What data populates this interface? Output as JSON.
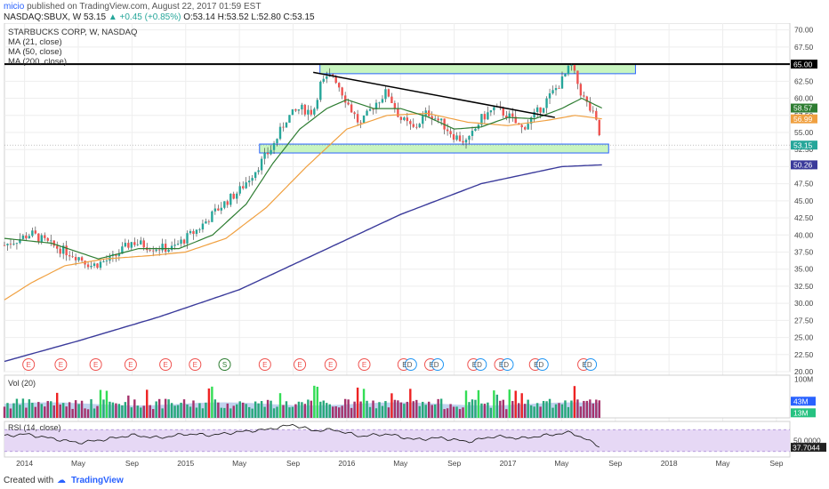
{
  "header": {
    "author": "micio",
    "published": "published on TradingView.com, August 22, 2017 01:59 EST",
    "symbol": "NASDAQ:SBUX, W",
    "last": "53.15",
    "change": "+0.45 (+0.85%)",
    "ohlc": "O:53.14 H:53.52 L:52.80 C:53.15"
  },
  "footer": {
    "created_with": "Created with",
    "brand": "TradingView"
  },
  "colors": {
    "up": "#26a69a",
    "down": "#ef5350",
    "ma21": "#2e7d32",
    "ma50": "#f0a040",
    "ma200": "#3b3b9b",
    "zone_fill": "#c8f5c0",
    "zone_stroke": "#2962ff",
    "rsi_bg": "#e6d8f5",
    "vol_area": "#a7c1e8"
  },
  "chart_data": {
    "type": "line",
    "title": "STARBUCKS CORP, W, NASDAQ",
    "legend": [
      "MA (21, close)",
      "MA (50, close)",
      "MA (200, close)"
    ],
    "ylim": [
      20,
      71
    ],
    "y_ticks": [
      "70.00",
      "67.50",
      "65.00",
      "62.50",
      "60.00",
      "57.50",
      "55.00",
      "52.50",
      "50.00",
      "47.50",
      "45.00",
      "42.50",
      "40.00",
      "37.50",
      "35.00",
      "32.50",
      "30.00",
      "27.50",
      "25.00",
      "22.50",
      "20.00"
    ],
    "x_ticks": [
      "2014",
      "May",
      "Sep",
      "2015",
      "May",
      "Sep",
      "2016",
      "May",
      "Sep",
      "2017",
      "May",
      "Sep",
      "2018",
      "May",
      "Sep"
    ],
    "x_tick_months": [
      24168,
      24172,
      24176,
      24180,
      24184,
      24188,
      24192,
      24196,
      24200,
      24204,
      24208,
      24212,
      24216,
      24220,
      24224
    ],
    "x_range_months": [
      24166.5,
      24225
    ],
    "price_waypoints": [
      [
        24166.5,
        38.5
      ],
      [
        24168.5,
        40.2
      ],
      [
        24170,
        38.5
      ],
      [
        24172,
        36.8
      ],
      [
        24173,
        35.5
      ],
      [
        24174.5,
        36.5
      ],
      [
        24176,
        39.0
      ],
      [
        24177.5,
        38.2
      ],
      [
        24179,
        38.0
      ],
      [
        24180,
        39.5
      ],
      [
        24181,
        41.0
      ],
      [
        24182.5,
        44.0
      ],
      [
        24184,
        46.5
      ],
      [
        24185,
        49.0
      ],
      [
        24186.5,
        53.0
      ],
      [
        24187.5,
        57.0
      ],
      [
        24188.5,
        58.5
      ],
      [
        24189.5,
        58.0
      ],
      [
        24190,
        62.0
      ],
      [
        24191,
        63.5
      ],
      [
        24192,
        59.5
      ],
      [
        24193,
        56.0
      ],
      [
        24194,
        59.0
      ],
      [
        24195,
        61.0
      ],
      [
        24196,
        57.0
      ],
      [
        24197,
        55.5
      ],
      [
        24198,
        58.0
      ],
      [
        24199,
        56.5
      ],
      [
        24200,
        54.5
      ],
      [
        24201,
        53.5
      ],
      [
        24202,
        57.0
      ],
      [
        24203,
        58.5
      ],
      [
        24204,
        57.5
      ],
      [
        24205,
        55.5
      ],
      [
        24206,
        57.5
      ],
      [
        24207,
        60.0
      ],
      [
        24208,
        62.5
      ],
      [
        24208.7,
        64.8
      ],
      [
        24209.5,
        60.5
      ],
      [
        24210.5,
        57.0
      ],
      [
        24211,
        53.15
      ]
    ],
    "ma21_waypoints": [
      [
        24166.5,
        39.5
      ],
      [
        24170,
        38.8
      ],
      [
        24173.5,
        36.5
      ],
      [
        24176.5,
        38.0
      ],
      [
        24179.5,
        38.0
      ],
      [
        24182,
        40.0
      ],
      [
        24184.5,
        44.5
      ],
      [
        24186.5,
        50.5
      ],
      [
        24188.5,
        55.5
      ],
      [
        24190.5,
        58.5
      ],
      [
        24192,
        59.8
      ],
      [
        24194,
        58.5
      ],
      [
        24196,
        58.5
      ],
      [
        24198,
        57.3
      ],
      [
        24200,
        55.5
      ],
      [
        24202,
        55.8
      ],
      [
        24204,
        57.2
      ],
      [
        24206,
        57.0
      ],
      [
        24208,
        58.5
      ],
      [
        24209.5,
        60.0
      ],
      [
        24211,
        58.57
      ]
    ],
    "ma50_waypoints": [
      [
        24166.5,
        30.5
      ],
      [
        24168.5,
        33.0
      ],
      [
        24171,
        35.5
      ],
      [
        24174,
        36.5
      ],
      [
        24177.5,
        37.0
      ],
      [
        24180,
        37.5
      ],
      [
        24183,
        39.5
      ],
      [
        24186,
        44.0
      ],
      [
        24189,
        50.0
      ],
      [
        24192,
        55.5
      ],
      [
        24195,
        57.5
      ],
      [
        24198,
        57.8
      ],
      [
        24201,
        56.5
      ],
      [
        24204,
        56.0
      ],
      [
        24207,
        56.8
      ],
      [
        24209,
        57.5
      ],
      [
        24211,
        56.99
      ]
    ],
    "ma200_waypoints": [
      [
        24166.5,
        21.5
      ],
      [
        24172,
        24.5
      ],
      [
        24178,
        28.0
      ],
      [
        24184,
        32.0
      ],
      [
        24190,
        37.5
      ],
      [
        24196,
        43.0
      ],
      [
        24202,
        47.5
      ],
      [
        24208,
        50.0
      ],
      [
        24211,
        50.26
      ]
    ],
    "last_labels": [
      {
        "value": 65.0,
        "text": "65.00",
        "color": "#000000"
      },
      {
        "value": 58.57,
        "text": "58.57",
        "color": "#2e7d32"
      },
      {
        "value": 56.99,
        "text": "56.99",
        "color": "#f0a040"
      },
      {
        "value": 53.15,
        "text": "53.15",
        "color": "#26a69a"
      },
      {
        "value": 50.26,
        "text": "50.26",
        "color": "#3b3b9b"
      }
    ],
    "resistance_line": 65.0,
    "zones": [
      {
        "x_start": 24190,
        "x_end": 24213.5,
        "y_low": 63.6,
        "y_high": 65.0
      },
      {
        "x_start": 24185.5,
        "x_end": 24211.5,
        "y_low": 52.0,
        "y_high": 53.3
      }
    ],
    "trendline": [
      [
        24189.5,
        63.8
      ],
      [
        24207.5,
        57.2
      ]
    ],
    "events": [
      {
        "month": 24168.3,
        "label": "E"
      },
      {
        "month": 24170.7,
        "label": "E"
      },
      {
        "month": 24173.3,
        "label": "E"
      },
      {
        "month": 24175.9,
        "label": "E"
      },
      {
        "month": 24178.5,
        "label": "E"
      },
      {
        "month": 24180.7,
        "label": "E"
      },
      {
        "month": 24182.9,
        "label": "S"
      },
      {
        "month": 24185.9,
        "label": "E"
      },
      {
        "month": 24188.5,
        "label": "E"
      },
      {
        "month": 24190.8,
        "label": "E"
      },
      {
        "month": 24193.3,
        "label": "E"
      },
      {
        "month": 24196.5,
        "label": "ED"
      },
      {
        "month": 24198.5,
        "label": "ED"
      },
      {
        "month": 24201.7,
        "label": "ED"
      },
      {
        "month": 24203.7,
        "label": "ED"
      },
      {
        "month": 24206.3,
        "label": "ED"
      },
      {
        "month": 24209.9,
        "label": "ED"
      }
    ],
    "volume": {
      "label": "Vol (20)",
      "ticks": [
        "100M"
      ],
      "ma_label": "43M",
      "last_label": "13M",
      "ylim": [
        0,
        110
      ]
    },
    "rsi": {
      "label": "RSI (14, close)",
      "ticks": [
        "50.0000"
      ],
      "last_label": "37.7044",
      "ylim": [
        20,
        85
      ],
      "waypoints": [
        [
          24166.5,
          58
        ],
        [
          24168,
          62
        ],
        [
          24170,
          54
        ],
        [
          24172,
          46
        ],
        [
          24174,
          52
        ],
        [
          24176,
          60
        ],
        [
          24178,
          55
        ],
        [
          24180,
          62
        ],
        [
          24182,
          60
        ],
        [
          24184,
          66
        ],
        [
          24186,
          70
        ],
        [
          24188,
          79
        ],
        [
          24189.5,
          68
        ],
        [
          24191,
          70
        ],
        [
          24193,
          58
        ],
        [
          24195,
          62
        ],
        [
          24197,
          52
        ],
        [
          24199,
          55
        ],
        [
          24201,
          48
        ],
        [
          24203,
          58
        ],
        [
          24205,
          54
        ],
        [
          24207,
          60
        ],
        [
          24208.7,
          65
        ],
        [
          24210,
          50
        ],
        [
          24211,
          37.7
        ]
      ]
    }
  }
}
